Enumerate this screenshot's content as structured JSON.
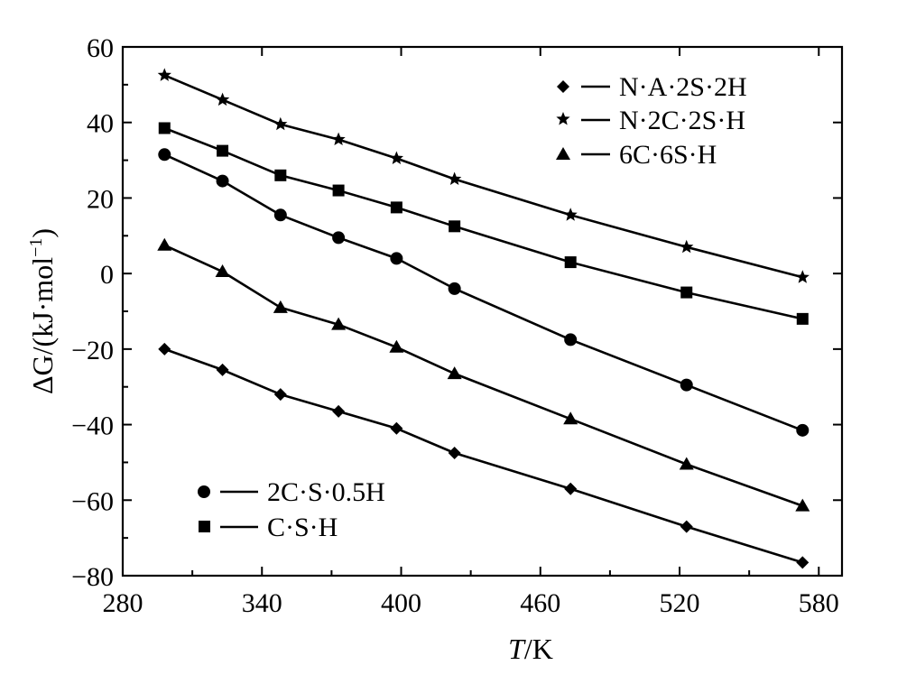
{
  "chart_data": {
    "type": "line",
    "xlabel_italic": "T",
    "xlabel_rest": "/K",
    "ylabel_prefix": "ΔG",
    "ylabel_rest": "/(kJ·mol",
    "ylabel_sup": "−1",
    "ylabel_close": ")",
    "xlim": [
      280,
      590
    ],
    "ylim": [
      -80,
      60
    ],
    "xticks": [
      280,
      340,
      400,
      460,
      520,
      580
    ],
    "xtick_labels": [
      "280",
      "340",
      "400",
      "460",
      "520",
      "580"
    ],
    "yticks": [
      -80,
      -60,
      -40,
      -20,
      0,
      20,
      40,
      60
    ],
    "ytick_labels": [
      "−80",
      "−60",
      "−40",
      "−20",
      "0",
      "20",
      "40",
      "60"
    ],
    "legend_top_right": [
      "N·A·2S·2H",
      "N·2C·2S·H",
      "6C·6S·H"
    ],
    "legend_bottom_left": [
      "2C·S·0.5H",
      "C·S·H"
    ],
    "series": [
      {
        "name": "N·A·2S·2H",
        "marker": "diamond",
        "x": [
          298,
          323,
          348,
          373,
          398,
          423,
          473,
          523,
          573
        ],
        "y": [
          -20,
          -25.5,
          -32,
          -36.5,
          -41,
          -47.5,
          -57,
          -67,
          -76.5
        ]
      },
      {
        "name": "N·2C·2S·H",
        "marker": "star",
        "x": [
          298,
          323,
          348,
          373,
          398,
          423,
          473,
          523,
          573
        ],
        "y": [
          52.5,
          46,
          39.5,
          35.5,
          30.5,
          25,
          15.5,
          7,
          -1
        ]
      },
      {
        "name": "6C·6S·H",
        "marker": "triangle",
        "x": [
          298,
          323,
          348,
          373,
          398,
          423,
          473,
          523,
          573
        ],
        "y": [
          7.5,
          0.5,
          -9,
          -13.5,
          -19.5,
          -26.5,
          -38.5,
          -50.5,
          -61.5
        ]
      },
      {
        "name": "2C·S·0.5H",
        "marker": "circle",
        "x": [
          298,
          323,
          348,
          373,
          398,
          423,
          473,
          523,
          573
        ],
        "y": [
          31.5,
          24.5,
          15.5,
          9.5,
          4,
          -4,
          -17.5,
          -29.5,
          -41.5
        ]
      },
      {
        "name": "C·S·H",
        "marker": "square",
        "x": [
          298,
          323,
          348,
          373,
          398,
          423,
          473,
          523,
          573
        ],
        "y": [
          38.5,
          32.5,
          26,
          22,
          17.5,
          12.5,
          3,
          -5,
          -12
        ]
      }
    ]
  }
}
